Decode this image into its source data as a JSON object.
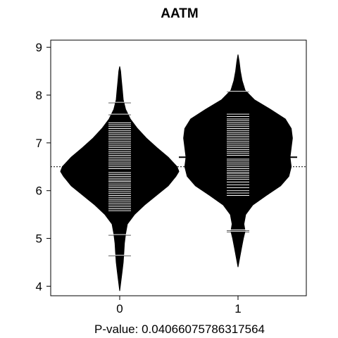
{
  "chart_data": {
    "type": "beanplot",
    "title": "AATM",
    "xlabel": "P-value: 0.04066075786317564",
    "ylabel": "",
    "ylim": [
      3.8,
      9.15
    ],
    "yticks": [
      "4",
      "5",
      "6",
      "7",
      "8",
      "9"
    ],
    "categories": [
      "0",
      "1"
    ],
    "overall_mean": 6.5,
    "grid": false,
    "beans": [
      {
        "category": "0",
        "mean": 6.42,
        "density": [
          [
            3.9,
            0.0
          ],
          [
            4.1,
            0.02
          ],
          [
            4.3,
            0.04
          ],
          [
            4.5,
            0.06
          ],
          [
            4.7,
            0.07
          ],
          [
            4.9,
            0.08
          ],
          [
            5.1,
            0.1
          ],
          [
            5.3,
            0.13
          ],
          [
            5.5,
            0.25
          ],
          [
            5.7,
            0.42
          ],
          [
            5.9,
            0.62
          ],
          [
            6.1,
            0.82
          ],
          [
            6.3,
            0.95
          ],
          [
            6.4,
            1.0
          ],
          [
            6.5,
            0.97
          ],
          [
            6.7,
            0.82
          ],
          [
            6.9,
            0.63
          ],
          [
            7.1,
            0.45
          ],
          [
            7.3,
            0.3
          ],
          [
            7.5,
            0.18
          ],
          [
            7.7,
            0.1
          ],
          [
            7.9,
            0.06
          ],
          [
            8.1,
            0.045
          ],
          [
            8.3,
            0.03
          ],
          [
            8.5,
            0.015
          ],
          [
            8.6,
            0.0
          ]
        ],
        "observations": [
          4.65,
          5.08,
          5.58,
          5.62,
          5.66,
          5.7,
          5.74,
          5.78,
          5.82,
          5.86,
          5.9,
          5.94,
          5.98,
          6.02,
          6.06,
          6.1,
          6.14,
          6.18,
          6.2,
          6.22,
          6.26,
          6.3,
          6.34,
          6.38,
          6.42,
          6.46,
          6.5,
          6.54,
          6.58,
          6.62,
          6.66,
          6.7,
          6.74,
          6.78,
          6.82,
          6.86,
          6.9,
          6.94,
          6.98,
          7.02,
          7.06,
          7.1,
          7.14,
          7.18,
          7.22,
          7.26,
          7.3,
          7.34,
          7.38,
          7.42,
          7.6,
          7.85
        ]
      },
      {
        "category": "1",
        "mean": 6.7,
        "density": [
          [
            4.4,
            0.0
          ],
          [
            4.6,
            0.03
          ],
          [
            4.8,
            0.06
          ],
          [
            5.0,
            0.09
          ],
          [
            5.15,
            0.12
          ],
          [
            5.3,
            0.1
          ],
          [
            5.5,
            0.13
          ],
          [
            5.7,
            0.25
          ],
          [
            5.9,
            0.48
          ],
          [
            6.1,
            0.72
          ],
          [
            6.3,
            0.86
          ],
          [
            6.5,
            0.9
          ],
          [
            6.7,
            0.88
          ],
          [
            6.9,
            0.9
          ],
          [
            7.1,
            0.92
          ],
          [
            7.3,
            0.9
          ],
          [
            7.5,
            0.8
          ],
          [
            7.7,
            0.55
          ],
          [
            7.9,
            0.28
          ],
          [
            8.1,
            0.12
          ],
          [
            8.3,
            0.07
          ],
          [
            8.5,
            0.04
          ],
          [
            8.7,
            0.02
          ],
          [
            8.85,
            0.0
          ]
        ],
        "observations": [
          5.15,
          5.18,
          5.9,
          5.95,
          6.0,
          6.06,
          6.12,
          6.18,
          6.24,
          6.28,
          6.32,
          6.36,
          6.38,
          6.42,
          6.46,
          6.5,
          6.54,
          6.58,
          6.62,
          6.66,
          6.7,
          6.74,
          6.78,
          6.82,
          6.86,
          6.9,
          6.94,
          6.98,
          7.02,
          7.06,
          7.1,
          7.14,
          7.18,
          7.22,
          7.26,
          7.3,
          7.34,
          7.38,
          7.42,
          7.46,
          7.5,
          7.55,
          7.6,
          8.08
        ]
      }
    ]
  }
}
